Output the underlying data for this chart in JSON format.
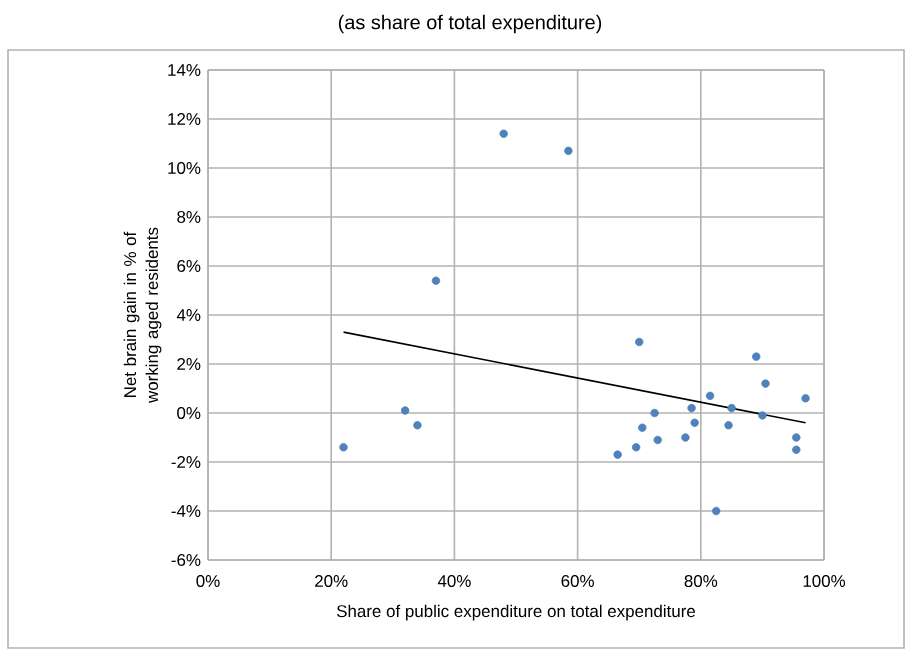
{
  "chart_data": {
    "type": "scatter",
    "title": "(as share of total expenditure)",
    "xlabel": "Share of public expenditure on total expenditure",
    "ylabel": "Net brain gain in % of working aged residents",
    "series": [
      {
        "color": "#4f81bd",
        "marker": "circle",
        "x": [
          22,
          32,
          34,
          37,
          48,
          58.5,
          66.5,
          69.5,
          70,
          70.5,
          72.5,
          73,
          77.5,
          78.5,
          79,
          81.5,
          82.5,
          84.5,
          85,
          89,
          90,
          90.5,
          95.5,
          95.5,
          97
        ],
        "values": [
          -1.4,
          0.1,
          -0.5,
          5.4,
          11.4,
          10.7,
          -1.7,
          -1.4,
          2.9,
          -0.6,
          0,
          -1.1,
          -1,
          0.2,
          -0.4,
          0.7,
          -4,
          -0.5,
          0.2,
          2.3,
          -0.1,
          1.2,
          -1.5,
          -1,
          0.6
        ]
      },
      {
        "type": "line",
        "color": "#000000",
        "marker": "none",
        "x": [
          22,
          97
        ],
        "values": [
          3.3,
          -0.4
        ]
      }
    ],
    "xlim": [
      0,
      100
    ],
    "ylim": [
      -6,
      14
    ],
    "xticks": [
      {
        "value": 0,
        "label": "0%"
      },
      {
        "value": 20,
        "label": "20%"
      },
      {
        "value": 40,
        "label": "40%"
      },
      {
        "value": 60,
        "label": "60%"
      },
      {
        "value": 80,
        "label": "80%"
      },
      {
        "value": 100,
        "label": "100%"
      }
    ],
    "yticks": [
      {
        "value": -6,
        "label": "-6%"
      },
      {
        "value": -4,
        "label": "-4%"
      },
      {
        "value": -2,
        "label": "-2%"
      },
      {
        "value": 0,
        "label": "0%"
      },
      {
        "value": 2,
        "label": "2%"
      },
      {
        "value": 4,
        "label": "4%"
      },
      {
        "value": 6,
        "label": "6%"
      },
      {
        "value": 8,
        "label": "8%"
      },
      {
        "value": 10,
        "label": "10%"
      },
      {
        "value": 12,
        "label": "12%"
      },
      {
        "value": 14,
        "label": "14%"
      }
    ],
    "grid": true
  }
}
